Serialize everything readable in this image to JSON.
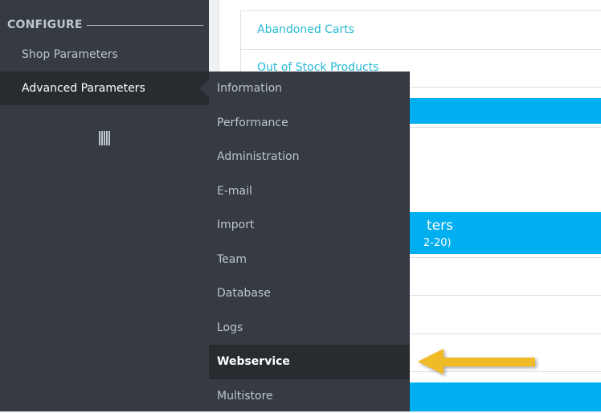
{
  "sidebar": {
    "section": "CONFIGURE",
    "items": [
      {
        "label": "Shop Parameters"
      },
      {
        "label": "Advanced Parameters",
        "active": true
      }
    ],
    "collapse_icon": "collapse-bars-icon"
  },
  "content": {
    "links": [
      "Abandoned Carts",
      "Out of Stock Products"
    ],
    "panel_title_fragment": "ters",
    "panel_subtitle_fragment": "2-20)"
  },
  "submenu": {
    "items": [
      "Information",
      "Performance",
      "Administration",
      "E-mail",
      "Import",
      "Team",
      "Database",
      "Logs",
      "Webservice",
      "Multistore"
    ],
    "active": "Webservice"
  },
  "colors": {
    "sidebar": "#363a41",
    "active": "#282b30",
    "accent": "#00aff0",
    "link": "#25b9d7",
    "arrow": "#f0bb25"
  }
}
